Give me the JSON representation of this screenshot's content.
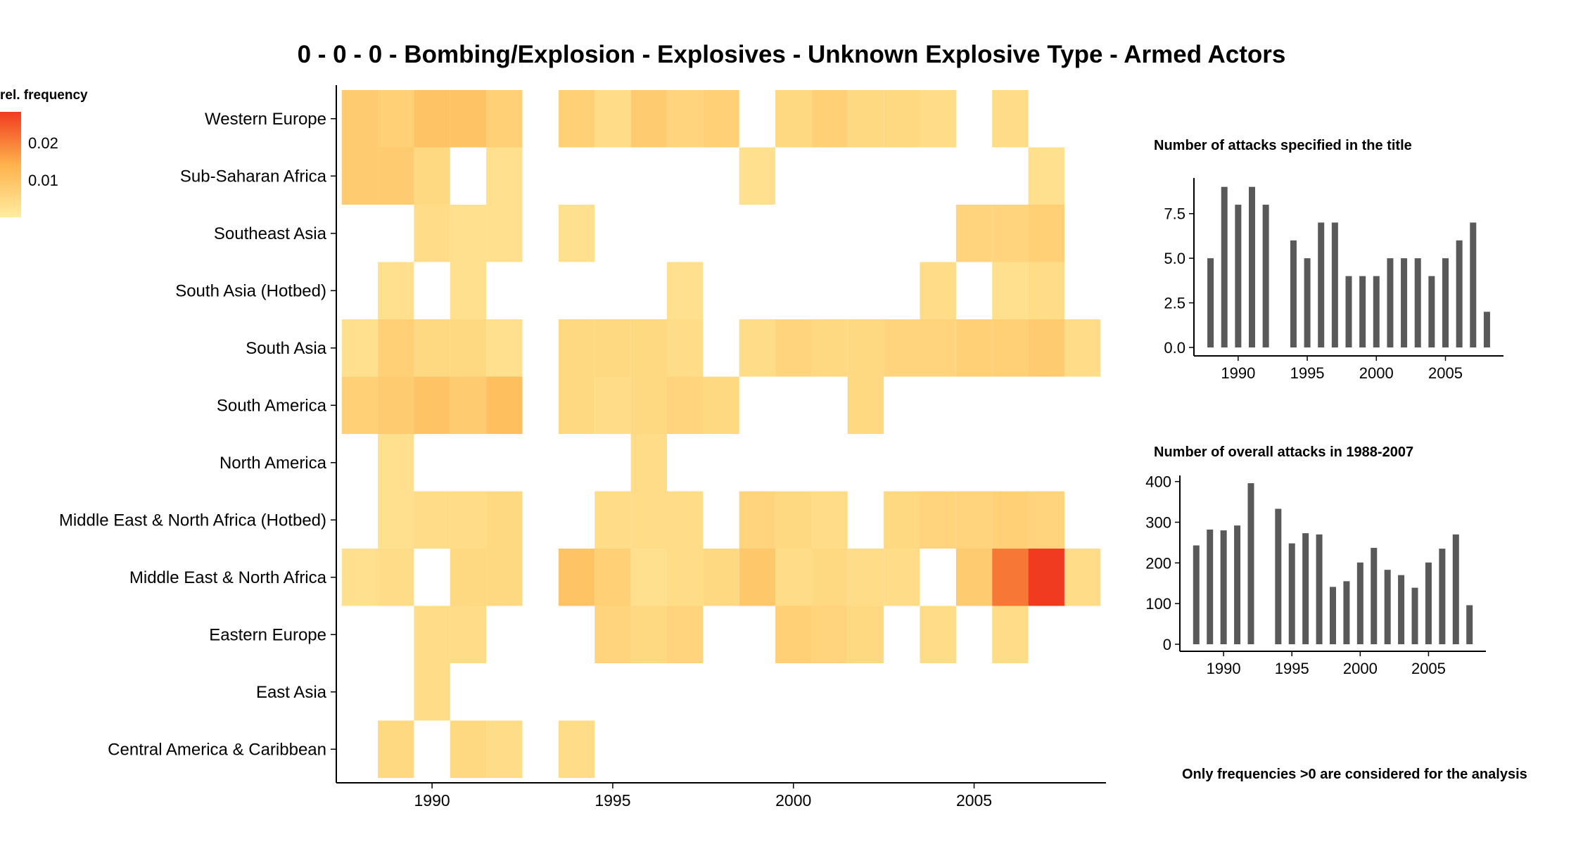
{
  "title": "0 - 0 - 0 - Bombing/Explosion - Explosives - Unknown Explosive Type - Armed Actors",
  "legend": {
    "title": "rel. frequency",
    "ticks": [
      "0.02",
      "0.01"
    ]
  },
  "footnote": "Only frequencies >0 are considered for the analysis",
  "chart_data": [
    {
      "type": "heatmap",
      "title": "",
      "xlabel": "",
      "ylabel": "",
      "x_ticks": [
        "1990",
        "1995",
        "2000",
        "2005"
      ],
      "x": [
        1988,
        1989,
        1990,
        1991,
        1992,
        1993,
        1994,
        1995,
        1996,
        1997,
        1998,
        1999,
        2000,
        2001,
        2002,
        2003,
        2004,
        2005,
        2006,
        2007,
        2008
      ],
      "y": [
        "Western Europe",
        "Sub-Saharan Africa",
        "Southeast Asia",
        "South Asia (Hotbed)",
        "South Asia",
        "South America",
        "North America",
        "Middle East & North Africa (Hotbed)",
        "Middle East & North Africa",
        "Eastern Europe",
        "East Asia",
        "Central America & Caribbean"
      ],
      "values": [
        [
          0.008,
          0.007,
          0.01,
          0.01,
          0.007,
          0,
          0.007,
          0.004,
          0.008,
          0.006,
          0.007,
          0,
          0.005,
          0.007,
          0.005,
          0.005,
          0.004,
          0,
          0.004,
          0,
          0
        ],
        [
          0.008,
          0.008,
          0.005,
          0,
          0.003,
          0,
          0,
          0,
          0,
          0,
          0,
          0.003,
          0,
          0,
          0,
          0,
          0,
          0,
          0,
          0.003,
          0
        ],
        [
          0,
          0,
          0.004,
          0.003,
          0.003,
          0,
          0.003,
          0,
          0,
          0,
          0,
          0,
          0,
          0,
          0,
          0,
          0,
          0.006,
          0.006,
          0.007,
          0
        ],
        [
          0,
          0.003,
          0,
          0.003,
          0,
          0,
          0,
          0,
          0,
          0.003,
          0,
          0,
          0,
          0,
          0,
          0,
          0.004,
          0,
          0.003,
          0.004,
          0
        ],
        [
          0.003,
          0.007,
          0.005,
          0.005,
          0.003,
          0,
          0.005,
          0.005,
          0.005,
          0.004,
          0,
          0.004,
          0.006,
          0.005,
          0.005,
          0.006,
          0.006,
          0.007,
          0.007,
          0.008,
          0.004
        ],
        [
          0.007,
          0.008,
          0.01,
          0.008,
          0.011,
          0,
          0.005,
          0.004,
          0.005,
          0.006,
          0.005,
          0,
          0,
          0,
          0.005,
          0,
          0,
          0,
          0,
          0,
          0
        ],
        [
          0,
          0.003,
          0,
          0,
          0,
          0,
          0,
          0,
          0.004,
          0,
          0,
          0,
          0,
          0,
          0,
          0,
          0,
          0,
          0,
          0,
          0
        ],
        [
          0,
          0.003,
          0.004,
          0.004,
          0.005,
          0,
          0,
          0.004,
          0.004,
          0.004,
          0,
          0.006,
          0.005,
          0.004,
          0,
          0.005,
          0.006,
          0.006,
          0.007,
          0.006,
          0
        ],
        [
          0.003,
          0.004,
          0,
          0.005,
          0.005,
          0,
          0.01,
          0.007,
          0.003,
          0.004,
          0.005,
          0.009,
          0.004,
          0.005,
          0.004,
          0.004,
          0,
          0.008,
          0.021,
          0.028,
          0.004
        ],
        [
          0,
          0,
          0.004,
          0.004,
          0,
          0,
          0,
          0.006,
          0.005,
          0.006,
          0,
          0,
          0.007,
          0.006,
          0.005,
          0,
          0.004,
          0,
          0.004,
          0,
          0
        ],
        [
          0,
          0,
          0.004,
          0,
          0,
          0,
          0,
          0,
          0,
          0,
          0,
          0,
          0,
          0,
          0,
          0,
          0,
          0,
          0,
          0,
          0
        ],
        [
          0,
          0.005,
          0,
          0.005,
          0.004,
          0,
          0.004,
          0,
          0,
          0,
          0,
          0,
          0,
          0,
          0,
          0,
          0,
          0,
          0,
          0,
          0
        ]
      ],
      "color_range": [
        0,
        0.028
      ],
      "colors": {
        "low": "#ffeda0",
        "mid": "#feb24c",
        "high": "#f03b20"
      }
    },
    {
      "type": "bar",
      "title": "Number of attacks specified in the title",
      "x": [
        1988,
        1989,
        1990,
        1991,
        1992,
        1994,
        1995,
        1996,
        1997,
        1998,
        1999,
        2000,
        2001,
        2002,
        2003,
        2004,
        2005,
        2006,
        2007,
        2008
      ],
      "values": [
        5,
        9,
        8,
        9,
        8,
        6,
        5,
        7,
        7,
        4,
        4,
        4,
        5,
        5,
        5,
        4,
        5,
        6,
        7,
        2
      ],
      "x_ticks": [
        "1990",
        "1995",
        "2000",
        "2005"
      ],
      "y_ticks": [
        "0.0",
        "2.5",
        "5.0",
        "7.5"
      ],
      "ylim": [
        0,
        9.5
      ],
      "xlim": [
        1986.8,
        2009.2
      ],
      "color": "#595959"
    },
    {
      "type": "bar",
      "title": "Number of overall attacks in 1988-2007",
      "x": [
        1988,
        1989,
        1990,
        1991,
        1992,
        1994,
        1995,
        1996,
        1997,
        1998,
        1999,
        2000,
        2001,
        2002,
        2003,
        2004,
        2005,
        2006,
        2007,
        2008
      ],
      "values": [
        243,
        282,
        280,
        292,
        396,
        333,
        248,
        273,
        270,
        141,
        155,
        201,
        237,
        183,
        170,
        139,
        201,
        235,
        270,
        96
      ],
      "x_ticks": [
        "1990",
        "1995",
        "2000",
        "2005"
      ],
      "y_ticks": [
        "0",
        "100",
        "200",
        "300",
        "400"
      ],
      "ylim": [
        0,
        415
      ],
      "xlim": [
        1986.8,
        2009.2
      ],
      "color": "#595959"
    }
  ]
}
